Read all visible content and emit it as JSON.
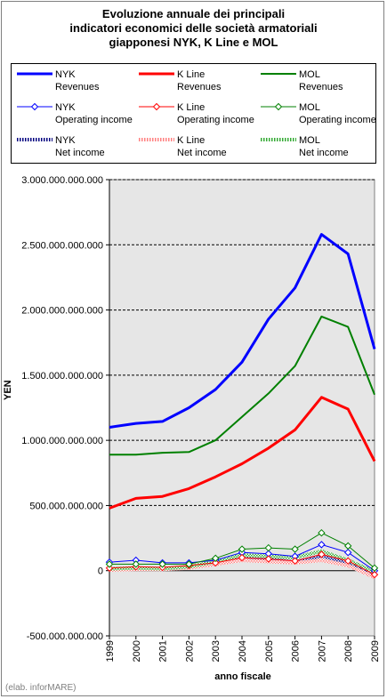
{
  "title_lines": [
    "Evoluzione annuale dei principali",
    "indicatori economici delle società armatoriali",
    "giapponesi NYK, K Line e MOL"
  ],
  "footer": "(elab. inforMARE)",
  "chart_data": {
    "type": "line",
    "x": [
      1999,
      2000,
      2001,
      2002,
      2003,
      2004,
      2005,
      2006,
      2007,
      2008,
      2009
    ],
    "xlabel": "anno fiscale",
    "ylabel": "YEN",
    "ylim": [
      -500000000000,
      3000000000000
    ],
    "yticks": [
      3000000000000,
      2500000000000,
      2000000000000,
      1500000000000,
      1000000000000,
      500000000000,
      0,
      -500000000000
    ],
    "ytick_labels": [
      "3.000.000.000.000",
      "2.500.000.000.000",
      "2.000.000.000.000",
      "1.500.000.000.000",
      "1.000.000.000.000",
      "500.000.000.000",
      "0",
      "-500.000.000.000"
    ],
    "grid": "horizontal dashed",
    "background": "#e6e6e6",
    "legend_position": "top",
    "series": [
      {
        "company": "NYK",
        "metric": "Revenues",
        "style": "thick",
        "color": "#0000ff",
        "values": [
          1100000000000,
          1130000000000,
          1145000000000,
          1250000000000,
          1390000000000,
          1600000000000,
          1930000000000,
          2170000000000,
          2580000000000,
          2430000000000,
          1700000000000
        ]
      },
      {
        "company": "K Line",
        "metric": "Revenues",
        "style": "thick",
        "color": "#ff0000",
        "values": [
          480000000000,
          555000000000,
          570000000000,
          630000000000,
          720000000000,
          820000000000,
          940000000000,
          1080000000000,
          1330000000000,
          1240000000000,
          840000000000
        ]
      },
      {
        "company": "MOL",
        "metric": "Revenues",
        "style": "thin",
        "color": "#008000",
        "values": [
          890000000000,
          890000000000,
          905000000000,
          910000000000,
          1000000000000,
          1180000000000,
          1360000000000,
          1570000000000,
          1950000000000,
          1870000000000,
          1350000000000
        ]
      },
      {
        "company": "NYK",
        "metric": "Operating income",
        "style": "marker",
        "color": "#0000ff",
        "values": [
          65000000000,
          80000000000,
          60000000000,
          60000000000,
          80000000000,
          140000000000,
          130000000000,
          110000000000,
          200000000000,
          140000000000,
          0
        ]
      },
      {
        "company": "K Line",
        "metric": "Operating income",
        "style": "marker",
        "color": "#ff0000",
        "values": [
          20000000000,
          30000000000,
          25000000000,
          40000000000,
          60000000000,
          100000000000,
          90000000000,
          75000000000,
          125000000000,
          75000000000,
          -30000000000
        ]
      },
      {
        "company": "MOL",
        "metric": "Operating income",
        "style": "marker",
        "color": "#008000",
        "values": [
          50000000000,
          50000000000,
          50000000000,
          50000000000,
          95000000000,
          165000000000,
          175000000000,
          165000000000,
          290000000000,
          190000000000,
          20000000000
        ]
      },
      {
        "company": "NYK",
        "metric": "Net income",
        "style": "hatched",
        "color": "#000080",
        "values": [
          10000000000,
          15000000000,
          10000000000,
          25000000000,
          60000000000,
          110000000000,
          90000000000,
          65000000000,
          115000000000,
          60000000000,
          -30000000000
        ]
      },
      {
        "company": "K Line",
        "metric": "Net income",
        "style": "hatched",
        "color": "#ff8080",
        "values": [
          5000000000,
          10000000000,
          10000000000,
          20000000000,
          50000000000,
          80000000000,
          70000000000,
          60000000000,
          80000000000,
          40000000000,
          -50000000000
        ]
      },
      {
        "company": "MOL",
        "metric": "Net income",
        "style": "hatched",
        "color": "#33aa33",
        "values": [
          15000000000,
          20000000000,
          15000000000,
          30000000000,
          70000000000,
          120000000000,
          110000000000,
          100000000000,
          150000000000,
          80000000000,
          -10000000000
        ]
      }
    ]
  }
}
